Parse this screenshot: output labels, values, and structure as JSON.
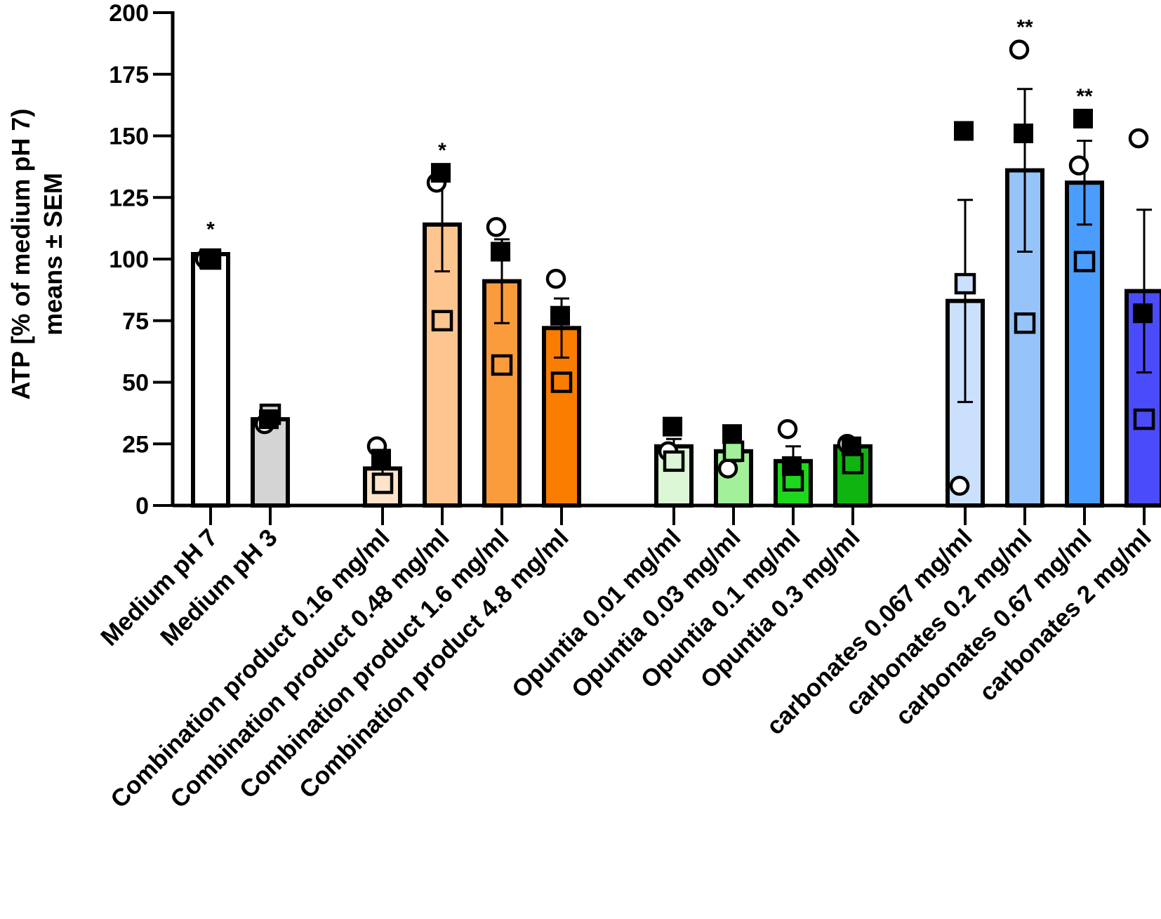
{
  "chart_data": {
    "type": "bar",
    "ylabel_line1": "ATP  [% of medium pH 7)",
    "ylabel_line2": "means ± SEM",
    "ylim": [
      0,
      200
    ],
    "yticks": [
      0,
      25,
      50,
      75,
      100,
      125,
      150,
      175,
      200
    ],
    "categories": [
      "Medium pH 7",
      "Medium pH 3",
      "Combination product  0.16 mg/ml",
      "Combination product 0.48 mg/ml",
      "Combination product 1.6 mg/ml",
      "Combination product  4.8 mg/ml",
      "Opuntia 0.01 mg/ml",
      "Opuntia 0.03 mg/ml",
      "Opuntia 0.1 mg/ml",
      "Opuntia 0.3 mg/ml",
      "carbonates 0.067 mg/ml",
      "carbonates 0.2 mg/ml",
      "carbonates 0.67 mg/ml",
      "carbonates 2 mg/ml"
    ],
    "groups": [
      0,
      0,
      1,
      1,
      1,
      1,
      2,
      2,
      2,
      2,
      3,
      3,
      3,
      3
    ],
    "values": [
      102,
      35,
      15,
      114,
      91,
      72,
      24,
      22,
      18,
      24,
      83,
      136,
      131,
      87
    ],
    "sem": [
      1,
      2,
      3,
      19,
      17,
      12,
      3,
      4,
      6,
      2,
      41,
      33,
      17,
      33
    ],
    "colors": [
      "#ffffff",
      "#d4d4d4",
      "#fde3c9",
      "#fdc590",
      "#fb9c3c",
      "#fa7d00",
      "#dcf7d6",
      "#a2f099",
      "#1ed81e",
      "#10b410",
      "#cbe0fc",
      "#95c3fa",
      "#4a9dfc",
      "#4a4cfa"
    ],
    "replicates": {
      "filled_square": [
        100,
        35,
        19,
        135,
        103,
        77,
        32,
        29,
        16,
        24,
        152,
        151,
        157,
        78
      ],
      "open_circle": [
        100,
        33,
        24,
        131,
        113,
        92,
        22,
        15,
        31,
        25,
        8,
        185,
        138,
        149
      ],
      "open_square": [
        100,
        37,
        9,
        75,
        57,
        50,
        18,
        22,
        10,
        17,
        90,
        74,
        99,
        35
      ]
    },
    "significance": [
      "*",
      "",
      "",
      "*",
      "",
      "",
      "",
      "",
      "",
      "",
      "",
      "**",
      "**",
      ""
    ]
  }
}
